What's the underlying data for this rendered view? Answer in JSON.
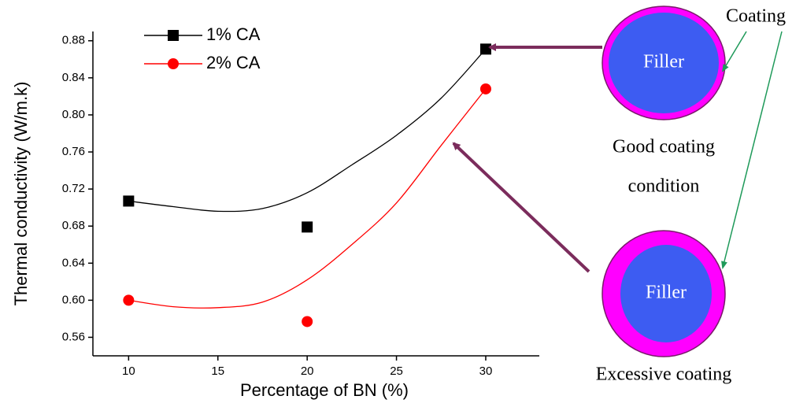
{
  "chart_data": {
    "type": "scatter",
    "xlabel": "Percentage of BN (%)",
    "ylabel": "Thermal conductivity (W/m.k)",
    "xlim": [
      8,
      33
    ],
    "xticks": [
      10,
      15,
      20,
      25,
      30
    ],
    "ylim": [
      0.54,
      0.89
    ],
    "yticks": [
      {
        "value": 0.56,
        "label": "0.56"
      },
      {
        "value": 0.6,
        "label": "0.60"
      },
      {
        "value": 0.64,
        "label": "0.64"
      },
      {
        "value": 0.68,
        "label": "0.68"
      },
      {
        "value": 0.72,
        "label": "0.72"
      },
      {
        "value": 0.76,
        "label": "0.76"
      },
      {
        "value": 0.8,
        "label": "0.80"
      },
      {
        "value": 0.84,
        "label": "0.84"
      },
      {
        "value": 0.88,
        "label": "0.88"
      }
    ],
    "series": [
      {
        "name": "1% CA",
        "color": "#000000",
        "marker": "square",
        "x": [
          10,
          20,
          30
        ],
        "values": [
          0.707,
          0.679,
          0.871
        ],
        "curve": {
          "x": [
            10,
            12.5,
            15,
            17.5,
            20,
            22.5,
            25,
            27.5,
            30
          ],
          "values": [
            0.707,
            0.701,
            0.696,
            0.699,
            0.716,
            0.746,
            0.778,
            0.818,
            0.871
          ]
        }
      },
      {
        "name": "2% CA",
        "color": "#ff0000",
        "marker": "circle",
        "x": [
          10,
          20,
          30
        ],
        "values": [
          0.6,
          0.577,
          0.828
        ],
        "curve": {
          "x": [
            10,
            12.5,
            15,
            17.5,
            20,
            22.5,
            25,
            27.5,
            30
          ],
          "values": [
            0.6,
            0.593,
            0.592,
            0.598,
            0.622,
            0.66,
            0.705,
            0.767,
            0.828
          ]
        }
      }
    ]
  },
  "diagram": {
    "coating_label": "Coating",
    "filler_labels": [
      "Filler",
      "Filler"
    ],
    "good_caption": [
      "Good coating",
      "condition"
    ],
    "excessive_caption": "Excessive coating"
  }
}
